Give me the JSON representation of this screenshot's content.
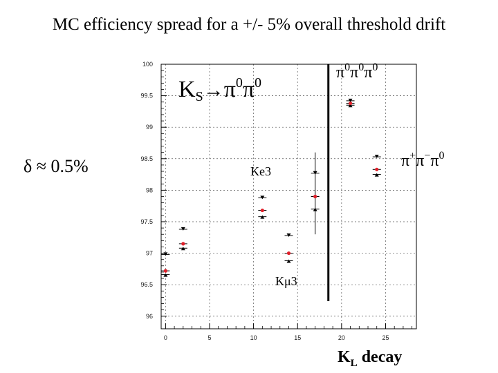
{
  "page": {
    "title": "MC efficiency spread for a +/- 5% overall threshold drift",
    "delta_label": "δ ≈ 0.5%"
  },
  "chart_data": {
    "type": "scatter",
    "title": "",
    "xlabel_main": "K",
    "xlabel_sub": "L",
    "xlabel_tail": " decay",
    "ylabel": "",
    "xlim": [
      -0.5,
      28.5
    ],
    "ylim": [
      95.8,
      100
    ],
    "x_ticks": [
      0,
      5,
      10,
      15,
      20,
      25
    ],
    "x_tick_labels": [
      "0",
      "5",
      "10",
      "15",
      "20",
      "25"
    ],
    "y_ticks": [
      96,
      96.5,
      97,
      97.5,
      98,
      98.5,
      99,
      99.5,
      100
    ],
    "y_tick_labels": [
      "96",
      "96.5",
      "97",
      "97.5",
      "98",
      "98.5",
      "99",
      "99.5",
      "100"
    ],
    "grid": true,
    "series": [
      {
        "role": "nominal",
        "color": "#e0202a",
        "points": [
          [
            0,
            96.72
          ],
          [
            2,
            97.15
          ],
          [
            11,
            97.68
          ],
          [
            14,
            97.0
          ],
          [
            17,
            97.9
          ],
          [
            21,
            99.38
          ],
          [
            24,
            98.33
          ]
        ]
      },
      {
        "role": "upper",
        "color": "#000000",
        "points": [
          [
            0,
            96.98
          ],
          [
            2,
            97.38
          ],
          [
            11,
            97.88
          ],
          [
            14,
            97.28
          ],
          [
            17,
            98.27
          ],
          [
            21,
            99.42
          ],
          [
            24,
            98.53
          ]
        ]
      },
      {
        "role": "lower",
        "color": "#000000",
        "points": [
          [
            0,
            96.66
          ],
          [
            2,
            97.08
          ],
          [
            11,
            97.58
          ],
          [
            14,
            96.88
          ],
          [
            17,
            97.7
          ],
          [
            21,
            99.35
          ],
          [
            24,
            98.25
          ]
        ]
      }
    ],
    "divider_x": 18.5,
    "annotations": {
      "ks_main": "K",
      "ks_sub": "S",
      "ks_arrow": "→",
      "ks_pi1": "π",
      "ks_sup1": "0",
      "ks_pi2": "π",
      "ks_sup2": "0",
      "three_pi0_text": "π",
      "three_pi0_sup": "0",
      "ke3": "Ke3",
      "kmu3": "Kμ3",
      "pipipi_pi1": "π",
      "pipipi_sup1": "+",
      "pipipi_pi2": "π",
      "pipipi_sup2": "−",
      "pipipi_pi3": "π",
      "pipipi_sup3": "0"
    }
  }
}
